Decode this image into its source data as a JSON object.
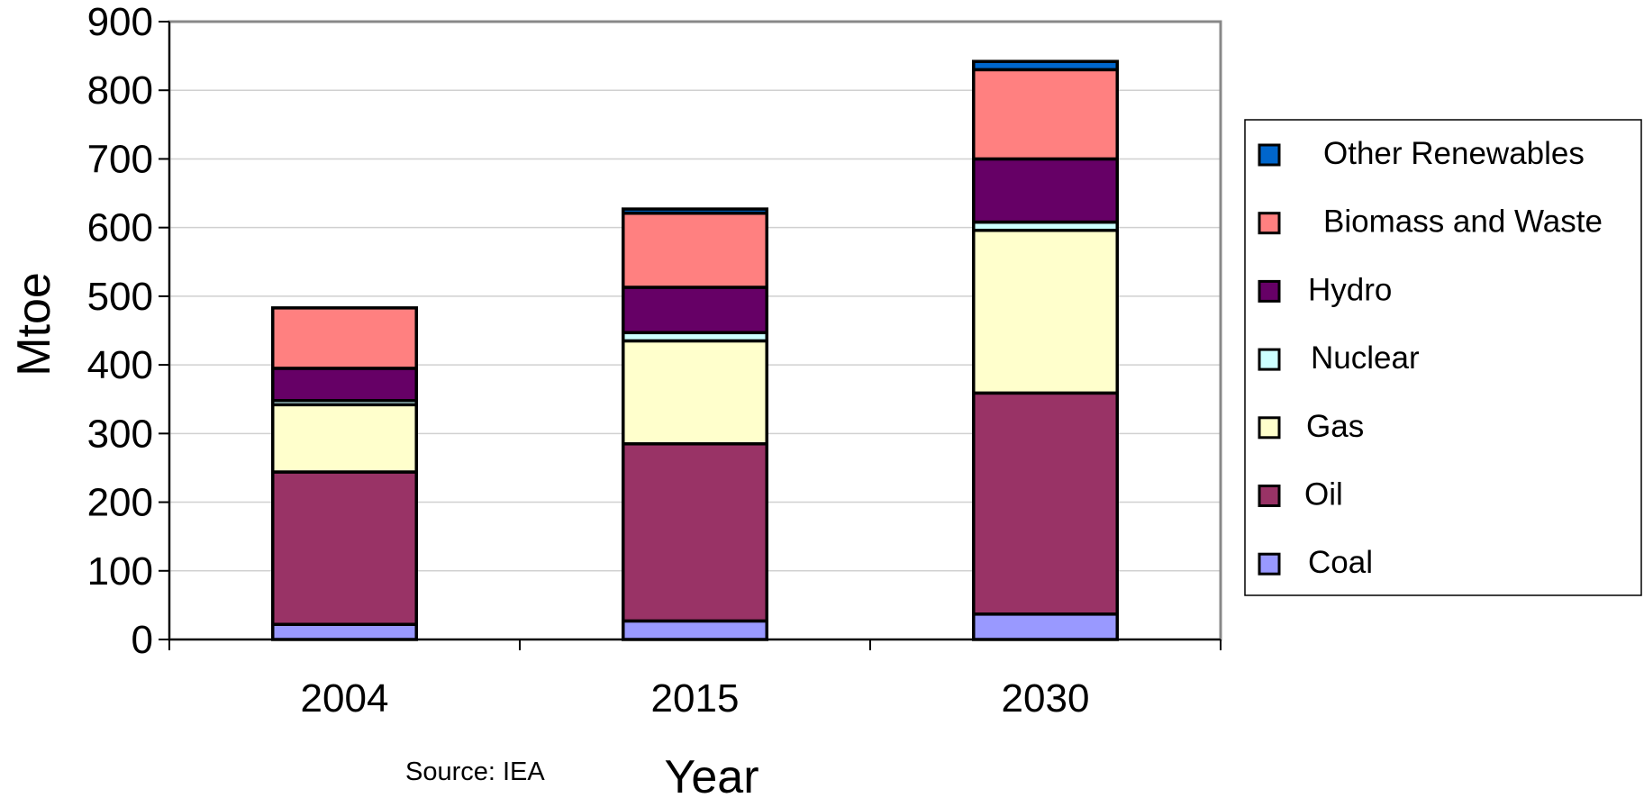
{
  "chart_data": {
    "type": "bar",
    "stacked": true,
    "categories": [
      "2004",
      "2015",
      "2030"
    ],
    "series": [
      {
        "name": "Coal",
        "color": "#9999ff",
        "values": [
          22,
          27,
          37
        ]
      },
      {
        "name": "Oil",
        "color": "#993366",
        "values": [
          222,
          258,
          322
        ]
      },
      {
        "name": "Gas",
        "color": "#ffffcc",
        "values": [
          98,
          150,
          237
        ]
      },
      {
        "name": "Nuclear",
        "color": "#ccffff",
        "values": [
          6,
          12,
          12
        ]
      },
      {
        "name": "Hydro",
        "color": "#660066",
        "values": [
          47,
          66,
          92
        ]
      },
      {
        "name": "Biomass and Waste",
        "color": "#ff8080",
        "values": [
          88,
          108,
          130
        ]
      },
      {
        "name": "Other Renewables",
        "color": "#0066cc",
        "values": [
          0,
          6,
          12
        ]
      }
    ],
    "xlabel": "Year",
    "ylabel": "Mtoe",
    "ylim": [
      0,
      900
    ],
    "yticks": [
      "0",
      "100",
      "200",
      "300",
      "400",
      "500",
      "600",
      "700",
      "800",
      "900"
    ],
    "grid": true,
    "legend_position": "right",
    "source_note": "Source:  IEA"
  }
}
